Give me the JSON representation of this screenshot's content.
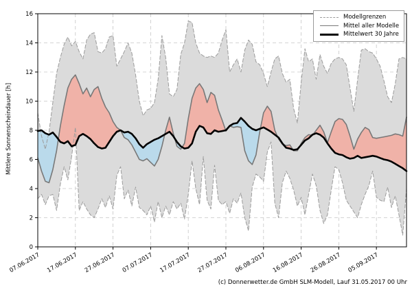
{
  "caption": "(c) Donnerwetter.de GmbH SLM-Modell, Lauf 31.05.2017 00 Uhr",
  "chart_data": {
    "type": "area",
    "title": "",
    "xlabel": "",
    "ylabel": "Mittlere Sonnenscheindauer [h]",
    "ylim": [
      0,
      16
    ],
    "ytick_step": 2,
    "y_tick_labels": [
      "0",
      "2",
      "4",
      "6",
      "8",
      "10",
      "12",
      "14",
      "16"
    ],
    "x_tick_days": [
      0,
      10,
      20,
      30,
      40,
      50,
      60,
      70,
      80,
      90
    ],
    "x_tick_labels": [
      "07.06.2017",
      "17.06.2017",
      "27.06.2017",
      "07.07.2017",
      "17.07.2017",
      "27.07.2017",
      "06.08.2017",
      "16.08.2017",
      "26.08.2017",
      "05.09.2017"
    ],
    "start_date": "07.06.2017",
    "grid": "dashed",
    "legend": [
      {
        "label": "Modellgrenzen",
        "style": "dashed-gray"
      },
      {
        "label": "Mittel aller Modelle",
        "style": "solid-gray"
      },
      {
        "label": "Mittelwert 30 Jahre",
        "style": "solid-black-thick"
      }
    ],
    "colors": {
      "band": "#dbdbdb",
      "above": "#f0b2a8",
      "below": "#badaeb",
      "grid": "#c6c6c6",
      "bounds": "#9b9b9b",
      "model_mean": "#787878",
      "mean_30y": "#000000",
      "frame": "#000000"
    },
    "series": [
      {
        "name": "Modellgrenzen (obere Grenze)",
        "role": "upper",
        "values": [
          9.2,
          7.6,
          6.7,
          7.9,
          9.9,
          11.9,
          13.0,
          13.9,
          14.4,
          13.8,
          14.1,
          13.4,
          12.9,
          14.2,
          14.6,
          14.7,
          13.4,
          13.3,
          13.6,
          14.4,
          14.5,
          12.4,
          12.9,
          13.4,
          14.0,
          13.3,
          11.8,
          10.0,
          9.0,
          9.4,
          9.5,
          9.9,
          11.5,
          14.5,
          13.0,
          10.5,
          10.3,
          10.8,
          13.2,
          14.0,
          15.5,
          15.4,
          14.0,
          13.3,
          13.1,
          13.0,
          13.1,
          13.0,
          13.3,
          14.2,
          14.9,
          12.0,
          12.5,
          12.9,
          12.0,
          13.5,
          14.2,
          13.9,
          12.7,
          12.5,
          11.9,
          11.0,
          12.0,
          12.9,
          13.1,
          11.9,
          11.3,
          11.5,
          9.5,
          8.5,
          11.3,
          13.6,
          12.7,
          12.9,
          11.5,
          13.2,
          12.4,
          11.9,
          12.6,
          12.9,
          13.0,
          12.9,
          12.5,
          10.9,
          9.3,
          11.5,
          13.5,
          13.6,
          13.4,
          13.3,
          12.9,
          12.4,
          11.4,
          10.3,
          9.9,
          11.2,
          12.9,
          13.0,
          12.9
        ]
      },
      {
        "name": "Modellgrenzen (untere Grenze)",
        "role": "lower",
        "values": [
          3.3,
          3.6,
          2.9,
          3.5,
          3.6,
          2.5,
          4.3,
          5.5,
          4.6,
          6.2,
          8.2,
          2.5,
          3.1,
          2.6,
          2.2,
          2.0,
          2.6,
          3.3,
          2.7,
          3.5,
          2.6,
          4.9,
          5.5,
          3.3,
          3.9,
          2.8,
          4.1,
          2.7,
          2.5,
          2.2,
          2.8,
          1.7,
          3.1,
          2.0,
          2.8,
          2.2,
          3.1,
          2.6,
          3.0,
          1.9,
          3.6,
          5.9,
          4.0,
          2.9,
          6.2,
          3.2,
          2.6,
          5.6,
          3.2,
          2.9,
          3.1,
          2.3,
          3.3,
          3.0,
          3.7,
          2.0,
          1.1,
          4.1,
          5.0,
          4.8,
          4.5,
          6.5,
          7.2,
          3.0,
          2.0,
          4.4,
          5.2,
          4.7,
          3.9,
          2.8,
          3.4,
          2.2,
          3.6,
          5.0,
          4.2,
          2.5,
          1.6,
          2.2,
          3.9,
          5.5,
          5.3,
          4.4,
          3.2,
          2.8,
          2.4,
          2.0,
          2.9,
          3.6,
          4.2,
          5.2,
          3.4,
          3.2,
          3.1,
          4.1,
          2.7,
          3.5,
          2.2,
          0.8,
          4.0
        ]
      },
      {
        "name": "Mittel aller Modelle",
        "role": "model_mean",
        "values": [
          6.1,
          5.2,
          4.5,
          4.4,
          5.3,
          6.6,
          8.3,
          9.7,
          10.9,
          11.5,
          11.8,
          11.2,
          10.5,
          10.9,
          10.3,
          10.8,
          11.0,
          10.2,
          9.6,
          9.2,
          8.6,
          8.2,
          8.0,
          7.5,
          7.35,
          7.0,
          6.5,
          6.0,
          5.9,
          6.05,
          5.8,
          5.55,
          6.0,
          6.9,
          8.0,
          8.9,
          7.8,
          6.9,
          6.7,
          7.1,
          8.8,
          10.2,
          10.9,
          11.2,
          10.8,
          9.9,
          10.6,
          10.4,
          9.4,
          8.7,
          7.95,
          8.3,
          8.2,
          8.25,
          8.2,
          6.6,
          5.9,
          5.65,
          6.3,
          7.9,
          9.2,
          9.65,
          9.3,
          8.0,
          7.4,
          7.05,
          6.95,
          7.0,
          6.6,
          6.6,
          7.1,
          7.5,
          7.7,
          7.65,
          8.0,
          8.35,
          7.9,
          7.15,
          7.9,
          8.6,
          8.8,
          8.75,
          8.4,
          7.6,
          6.7,
          7.4,
          7.85,
          8.2,
          8.05,
          7.5,
          7.45,
          7.5,
          7.55,
          7.6,
          7.65,
          7.75,
          7.7,
          7.6,
          8.9
        ]
      },
      {
        "name": "Mittelwert 30 Jahre",
        "role": "mean_30y",
        "values": [
          7.95,
          8.0,
          7.8,
          7.7,
          7.85,
          7.55,
          7.2,
          7.1,
          7.25,
          6.9,
          7.0,
          7.6,
          7.75,
          7.6,
          7.4,
          7.1,
          6.85,
          6.75,
          6.8,
          7.2,
          7.6,
          7.9,
          8.0,
          7.85,
          7.9,
          7.75,
          7.45,
          7.05,
          6.8,
          7.05,
          7.2,
          7.35,
          7.45,
          7.6,
          7.75,
          7.9,
          7.6,
          7.2,
          6.9,
          6.75,
          6.8,
          7.1,
          7.9,
          8.3,
          8.2,
          7.8,
          7.75,
          8.0,
          7.9,
          7.95,
          8.0,
          8.3,
          8.45,
          8.5,
          8.85,
          8.6,
          8.3,
          8.1,
          8.0,
          8.1,
          8.2,
          8.05,
          7.9,
          7.7,
          7.5,
          7.1,
          6.8,
          6.75,
          6.65,
          6.7,
          7.0,
          7.3,
          7.45,
          7.7,
          7.8,
          7.7,
          7.5,
          7.1,
          6.75,
          6.45,
          6.35,
          6.3,
          6.15,
          6.05,
          6.1,
          6.25,
          6.1,
          6.15,
          6.2,
          6.25,
          6.2,
          6.1,
          6.0,
          5.95,
          5.85,
          5.7,
          5.55,
          5.4,
          5.2
        ]
      }
    ]
  }
}
